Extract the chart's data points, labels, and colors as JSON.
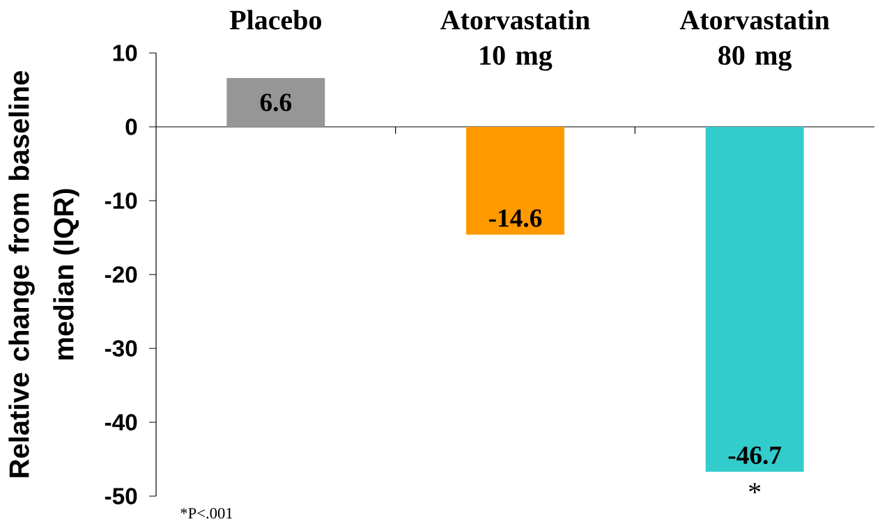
{
  "chart_data": {
    "type": "bar",
    "ylabel": "Relative change from baseline median (IQR)",
    "categories": [
      "Placebo",
      "Atorvastatin 10 mg",
      "Atorvastatin 80 mg"
    ],
    "values": [
      6.6,
      -14.6,
      -46.7
    ],
    "colors": [
      "#969696",
      "#ff9900",
      "#33cccc"
    ],
    "ylim": [
      -50,
      10
    ],
    "yticks": [
      -50,
      -40,
      -30,
      -20,
      -10,
      0,
      10
    ],
    "data_labels": true,
    "annotations": [
      {
        "text": "*",
        "x": "Atorvastatin 80 mg",
        "y": -46.7
      },
      "*P<.001"
    ]
  }
}
